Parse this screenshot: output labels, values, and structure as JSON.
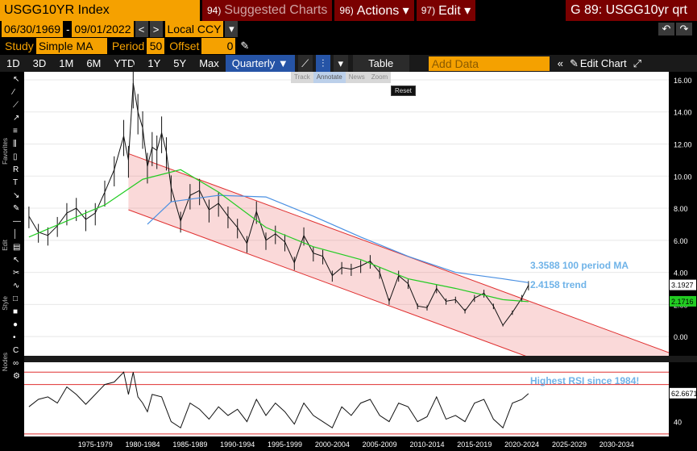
{
  "header": {
    "security": "USGG10YR Index",
    "suggested_num": "94)",
    "suggested_label": "Suggested Charts",
    "actions_num": "96)",
    "actions_label": "Actions ▾",
    "edit_num": "97)",
    "edit_label": "Edit ▾",
    "chart_id": "G 89: USGG10yr qrt"
  },
  "range": {
    "start": "06/30/1969",
    "sep": "-",
    "end": "09/01/2022",
    "currency": "Local CCY"
  },
  "study": {
    "study_label": "Study",
    "study_value": "Simple MA",
    "period_label": "Period",
    "period_value": "50",
    "offset_label": "Offset",
    "offset_value": "0"
  },
  "timeframes": [
    "1D",
    "3D",
    "1M",
    "6M",
    "YTD",
    "1Y",
    "5Y",
    "Max"
  ],
  "frequency": "Quarterly ▼",
  "table_label": "Table",
  "add_data_placeholder": "Add Data",
  "edit_chart_label": "Edit Chart",
  "mini_toolbar": [
    "Track",
    "Annotate",
    "News",
    "Zoom"
  ],
  "reset_label": "Reset",
  "side_labels": {
    "favorites": "Favorites",
    "edit": "Edit",
    "style": "Style",
    "nodes": "Nodes"
  },
  "annotations": {
    "ma100": "3.3588 100 period MA",
    "trend": "2.4158 trend",
    "rsi_note": "Highest RSI since 1984!"
  },
  "price_tags": {
    "last": "3.1927",
    "ma": "2.1716",
    "rsi": "62.6671"
  },
  "colors": {
    "accent": "#f5a100",
    "ma50": "#22cc22",
    "ma100": "#4a90e2",
    "channel": "#e03030",
    "note": "#6fb3e8"
  },
  "chart_data": {
    "type": "line",
    "title": "USGG10YR Index",
    "y_ticks": [
      "16.00",
      "14.00",
      "12.00",
      "10.00",
      "8.00",
      "6.00",
      "4.00",
      "2.00",
      "0.00"
    ],
    "x_ticks": [
      "1975-1979",
      "1980-1984",
      "1985-1989",
      "1990-1994",
      "1995-1999",
      "2000-2004",
      "2005-2009",
      "2010-2014",
      "2015-2019",
      "2020-2024",
      "2025-2029",
      "2030-2034"
    ],
    "ylim": [
      -1.2,
      16.5
    ],
    "xlim": [
      1969.5,
      2037.5
    ],
    "series": [
      {
        "name": "USGG10YR Index",
        "x": [
          1970,
          1971,
          1972,
          1973,
          1974,
          1975,
          1976,
          1977,
          1978,
          1979,
          1980,
          1980.5,
          1981,
          1981.5,
          1982,
          1982.5,
          1983,
          1983.5,
          1984,
          1984.5,
          1985,
          1986,
          1987,
          1988,
          1989,
          1990,
          1991,
          1992,
          1993,
          1994,
          1995,
          1996,
          1997,
          1998,
          1999,
          2000,
          2001,
          2002,
          2003,
          2004,
          2005,
          2006,
          2007,
          2008,
          2009,
          2010,
          2011,
          2012,
          2013,
          2014,
          2015,
          2016,
          2017,
          2018,
          2019,
          2020,
          2021,
          2022,
          2022.7
        ],
        "y": [
          7.5,
          6.5,
          6.3,
          6.9,
          7.7,
          8.0,
          7.3,
          7.7,
          9.0,
          10.4,
          12.5,
          11.0,
          15.8,
          14.0,
          13.0,
          10.6,
          11.8,
          11.6,
          12.7,
          11.5,
          9.3,
          7.2,
          8.8,
          9.1,
          7.9,
          8.3,
          7.5,
          6.8,
          5.8,
          7.8,
          6.0,
          6.4,
          5.9,
          4.6,
          6.3,
          5.2,
          5.0,
          3.8,
          4.3,
          4.2,
          4.4,
          4.7,
          4.0,
          2.2,
          3.8,
          3.3,
          1.9,
          1.8,
          3.0,
          2.2,
          2.3,
          1.6,
          2.4,
          2.7,
          1.9,
          0.7,
          1.5,
          2.4,
          3.2
        ]
      },
      {
        "name": "100 period MA",
        "x": [
          1982.5,
          1985,
          1990,
          1995,
          2000,
          2005,
          2010,
          2015,
          2020,
          2022.7
        ],
        "y": [
          7.0,
          8.4,
          8.8,
          8.7,
          7.5,
          6.2,
          5.0,
          4.0,
          3.6,
          3.3588
        ]
      },
      {
        "name": "50 period MA",
        "x": [
          1970,
          1974,
          1978,
          1982,
          1986,
          1990,
          1995,
          2000,
          2005,
          2010,
          2015,
          2020,
          2022.7
        ],
        "y": [
          6.2,
          7.2,
          8.2,
          9.8,
          10.4,
          9.0,
          6.8,
          5.6,
          4.8,
          3.6,
          3.0,
          2.3,
          2.1716
        ]
      },
      {
        "name": "trend",
        "upper_x": [
          1980.5,
          2037.5
        ],
        "upper_y": [
          11.4,
          -1.0
        ],
        "lower_x": [
          1980.5,
          2037.5
        ],
        "lower_y": [
          7.9,
          -4.5
        ]
      }
    ],
    "rsi": {
      "x": [
        1970,
        1971,
        1972,
        1973,
        1974,
        1975,
        1976,
        1977,
        1978,
        1979,
        1980,
        1980.5,
        1981,
        1981.5,
        1982,
        1982.5,
        1983,
        1984,
        1985,
        1986,
        1987,
        1988,
        1989,
        1990,
        1991,
        1992,
        1993,
        1994,
        1995,
        1996,
        1997,
        1998,
        1999,
        2000,
        2001,
        2002,
        2003,
        2004,
        2005,
        2006,
        2007,
        2008,
        2009,
        2010,
        2011,
        2012,
        2013,
        2014,
        2015,
        2016,
        2017,
        2018,
        2019,
        2020,
        2021,
        2022,
        2022.7
      ],
      "y": [
        52,
        58,
        60,
        55,
        68,
        62,
        54,
        62,
        70,
        72,
        80,
        62,
        80,
        60,
        55,
        48,
        62,
        60,
        40,
        35,
        55,
        50,
        42,
        52,
        45,
        50,
        40,
        58,
        45,
        55,
        48,
        38,
        55,
        45,
        40,
        35,
        52,
        45,
        55,
        58,
        45,
        40,
        55,
        52,
        40,
        44,
        60,
        42,
        45,
        40,
        55,
        58,
        42,
        35,
        55,
        58,
        62.6671
      ],
      "ylim": [
        28,
        88
      ],
      "levels": [
        80,
        70,
        30
      ],
      "y_ticks": [
        "40"
      ]
    }
  }
}
